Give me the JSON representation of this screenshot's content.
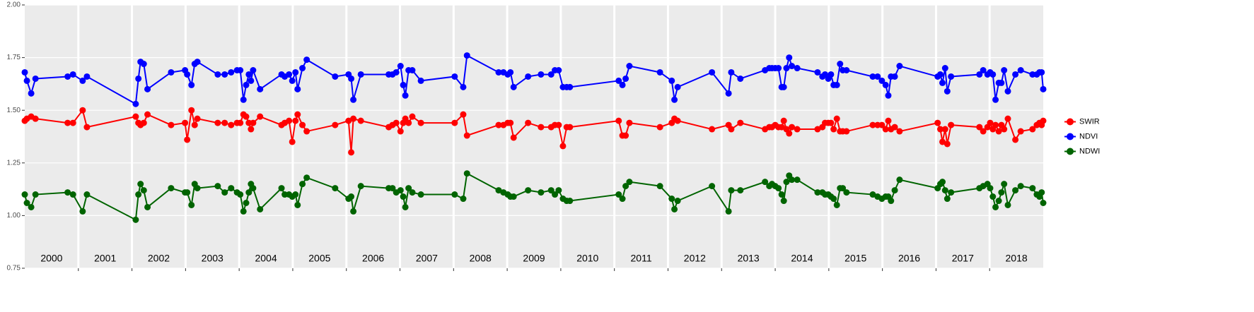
{
  "chart_data": {
    "type": "line",
    "x": [
      2000.0,
      2000.04,
      2000.12,
      2000.2,
      2000.8,
      2000.9,
      2001.08,
      2001.16,
      2002.07,
      2002.12,
      2002.16,
      2002.22,
      2002.29,
      2002.73,
      2002.99,
      2003.03,
      2003.11,
      2003.17,
      2003.22,
      2003.6,
      2003.73,
      2003.85,
      2003.96,
      2004.02,
      2004.08,
      2004.13,
      2004.18,
      2004.22,
      2004.26,
      2004.39,
      2004.79,
      2004.85,
      2004.93,
      2004.99,
      2005.05,
      2005.09,
      2005.18,
      2005.26,
      2005.79,
      2006.04,
      2006.09,
      2006.13,
      2006.27,
      2006.79,
      2006.86,
      2006.93,
      2007.01,
      2007.06,
      2007.1,
      2007.16,
      2007.23,
      2007.39,
      2008.02,
      2008.18,
      2008.25,
      2008.84,
      2008.93,
      2009.01,
      2009.06,
      2009.12,
      2009.39,
      2009.63,
      2009.82,
      2009.89,
      2009.96,
      2010.04,
      2010.11,
      2010.17,
      2011.08,
      2011.15,
      2011.21,
      2011.28,
      2011.85,
      2012.07,
      2012.12,
      2012.18,
      2012.82,
      2013.13,
      2013.18,
      2013.35,
      2013.81,
      2013.89,
      2013.94,
      2014.0,
      2014.06,
      2014.12,
      2014.16,
      2014.21,
      2014.26,
      2014.31,
      2014.41,
      2014.79,
      2014.88,
      2014.93,
      2014.99,
      2015.04,
      2015.09,
      2015.15,
      2015.21,
      2015.26,
      2015.33,
      2015.82,
      2015.91,
      2015.99,
      2016.06,
      2016.11,
      2016.16,
      2016.23,
      2016.32,
      2017.03,
      2017.08,
      2017.12,
      2017.17,
      2017.21,
      2017.28,
      2017.81,
      2017.88,
      2017.96,
      2018.01,
      2018.06,
      2018.11,
      2018.17,
      2018.22,
      2018.27,
      2018.34,
      2018.48,
      2018.58,
      2018.8,
      2018.88,
      2018.93,
      2018.97,
      2019.0
    ],
    "series": [
      {
        "name": "SWIR",
        "color": "#ff0000",
        "values": [
          1.45,
          1.46,
          1.47,
          1.46,
          1.44,
          1.44,
          1.5,
          1.42,
          1.47,
          1.44,
          1.43,
          1.44,
          1.48,
          1.43,
          1.44,
          1.36,
          1.5,
          1.43,
          1.46,
          1.44,
          1.44,
          1.43,
          1.44,
          1.44,
          1.48,
          1.47,
          1.44,
          1.41,
          1.44,
          1.47,
          1.43,
          1.44,
          1.45,
          1.35,
          1.45,
          1.48,
          1.43,
          1.4,
          1.43,
          1.45,
          1.3,
          1.46,
          1.45,
          1.42,
          1.43,
          1.44,
          1.4,
          1.44,
          1.46,
          1.44,
          1.47,
          1.44,
          1.44,
          1.48,
          1.38,
          1.43,
          1.43,
          1.44,
          1.44,
          1.37,
          1.44,
          1.42,
          1.42,
          1.43,
          1.43,
          1.33,
          1.42,
          1.42,
          1.45,
          1.38,
          1.38,
          1.44,
          1.42,
          1.44,
          1.46,
          1.45,
          1.41,
          1.43,
          1.41,
          1.44,
          1.41,
          1.42,
          1.42,
          1.43,
          1.42,
          1.42,
          1.45,
          1.41,
          1.39,
          1.42,
          1.41,
          1.41,
          1.42,
          1.44,
          1.44,
          1.44,
          1.41,
          1.46,
          1.4,
          1.4,
          1.4,
          1.43,
          1.43,
          1.43,
          1.41,
          1.45,
          1.41,
          1.42,
          1.4,
          1.44,
          1.41,
          1.35,
          1.41,
          1.34,
          1.43,
          1.42,
          1.4,
          1.42,
          1.44,
          1.41,
          1.43,
          1.4,
          1.43,
          1.41,
          1.46,
          1.36,
          1.4,
          1.41,
          1.43,
          1.44,
          1.43,
          1.45
        ]
      },
      {
        "name": "NDVI",
        "color": "#0000ff",
        "values": [
          1.68,
          1.64,
          1.58,
          1.65,
          1.66,
          1.67,
          1.64,
          1.66,
          1.53,
          1.65,
          1.73,
          1.72,
          1.6,
          1.68,
          1.69,
          1.67,
          1.62,
          1.72,
          1.73,
          1.67,
          1.67,
          1.68,
          1.69,
          1.69,
          1.55,
          1.62,
          1.67,
          1.64,
          1.69,
          1.6,
          1.67,
          1.66,
          1.67,
          1.64,
          1.68,
          1.6,
          1.7,
          1.74,
          1.66,
          1.67,
          1.65,
          1.55,
          1.67,
          1.67,
          1.67,
          1.68,
          1.71,
          1.62,
          1.57,
          1.69,
          1.69,
          1.64,
          1.66,
          1.61,
          1.76,
          1.68,
          1.68,
          1.67,
          1.68,
          1.61,
          1.66,
          1.67,
          1.67,
          1.69,
          1.69,
          1.61,
          1.61,
          1.61,
          1.64,
          1.62,
          1.65,
          1.71,
          1.68,
          1.64,
          1.55,
          1.61,
          1.68,
          1.58,
          1.68,
          1.65,
          1.69,
          1.7,
          1.7,
          1.7,
          1.7,
          1.61,
          1.61,
          1.7,
          1.75,
          1.71,
          1.7,
          1.68,
          1.66,
          1.67,
          1.65,
          1.67,
          1.62,
          1.62,
          1.72,
          1.69,
          1.69,
          1.66,
          1.66,
          1.64,
          1.62,
          1.57,
          1.66,
          1.66,
          1.71,
          1.66,
          1.67,
          1.63,
          1.7,
          1.59,
          1.66,
          1.67,
          1.69,
          1.67,
          1.68,
          1.67,
          1.55,
          1.63,
          1.63,
          1.69,
          1.59,
          1.67,
          1.69,
          1.67,
          1.67,
          1.68,
          1.68,
          1.6
        ]
      },
      {
        "name": "NDWI",
        "color": "#006400",
        "values": [
          1.1,
          1.06,
          1.04,
          1.1,
          1.11,
          1.1,
          1.02,
          1.1,
          0.98,
          1.1,
          1.15,
          1.12,
          1.04,
          1.13,
          1.11,
          1.11,
          1.05,
          1.15,
          1.13,
          1.14,
          1.11,
          1.13,
          1.11,
          1.1,
          1.02,
          1.06,
          1.11,
          1.15,
          1.13,
          1.03,
          1.13,
          1.1,
          1.1,
          1.09,
          1.1,
          1.05,
          1.15,
          1.18,
          1.13,
          1.08,
          1.09,
          1.02,
          1.14,
          1.13,
          1.13,
          1.11,
          1.12,
          1.09,
          1.04,
          1.13,
          1.11,
          1.1,
          1.1,
          1.08,
          1.2,
          1.12,
          1.11,
          1.1,
          1.09,
          1.09,
          1.12,
          1.11,
          1.12,
          1.1,
          1.12,
          1.08,
          1.07,
          1.07,
          1.1,
          1.08,
          1.14,
          1.16,
          1.14,
          1.08,
          1.03,
          1.07,
          1.14,
          1.02,
          1.12,
          1.12,
          1.16,
          1.14,
          1.15,
          1.14,
          1.13,
          1.1,
          1.07,
          1.16,
          1.19,
          1.17,
          1.17,
          1.11,
          1.11,
          1.1,
          1.1,
          1.09,
          1.08,
          1.05,
          1.13,
          1.13,
          1.11,
          1.1,
          1.09,
          1.08,
          1.09,
          1.09,
          1.07,
          1.12,
          1.17,
          1.13,
          1.15,
          1.16,
          1.12,
          1.08,
          1.11,
          1.13,
          1.14,
          1.15,
          1.13,
          1.09,
          1.04,
          1.07,
          1.11,
          1.15,
          1.05,
          1.12,
          1.14,
          1.13,
          1.1,
          1.09,
          1.11,
          1.06
        ]
      }
    ],
    "xlim": [
      2000,
      2019
    ],
    "xticks": [
      {
        "value": 2000.5,
        "label": "2000"
      },
      {
        "value": 2001.5,
        "label": "2001"
      },
      {
        "value": 2002.5,
        "label": "2002"
      },
      {
        "value": 2003.5,
        "label": "2003"
      },
      {
        "value": 2004.5,
        "label": "2004"
      },
      {
        "value": 2005.5,
        "label": "2005"
      },
      {
        "value": 2006.5,
        "label": "2006"
      },
      {
        "value": 2007.5,
        "label": "2007"
      },
      {
        "value": 2008.5,
        "label": "2008"
      },
      {
        "value": 2009.5,
        "label": "2009"
      },
      {
        "value": 2010.5,
        "label": "2010"
      },
      {
        "value": 2011.5,
        "label": "2011"
      },
      {
        "value": 2012.5,
        "label": "2012"
      },
      {
        "value": 2013.5,
        "label": "2013"
      },
      {
        "value": 2014.5,
        "label": "2014"
      },
      {
        "value": 2015.5,
        "label": "2015"
      },
      {
        "value": 2016.5,
        "label": "2016"
      },
      {
        "value": 2017.5,
        "label": "2017"
      },
      {
        "value": 2018.5,
        "label": "2018"
      }
    ],
    "ylim": [
      0.75,
      2.0
    ],
    "yticks": [
      0.75,
      {
        "value": 1.0,
        "label": "1.00"
      },
      1.25,
      {
        "value": 1.5,
        "label": "1.50"
      },
      1.75,
      {
        "value": 2.0,
        "label": "2.00"
      }
    ],
    "grid": true,
    "legend": "right"
  }
}
